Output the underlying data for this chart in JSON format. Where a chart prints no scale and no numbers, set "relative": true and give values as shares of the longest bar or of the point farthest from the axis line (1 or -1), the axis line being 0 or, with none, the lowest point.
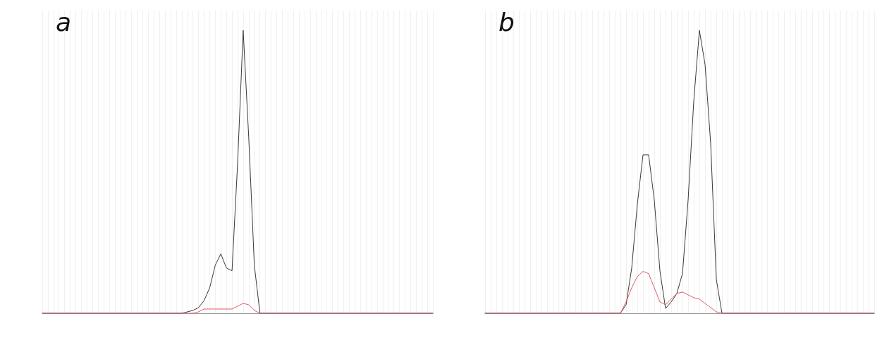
{
  "chart_data": [
    {
      "type": "line",
      "title": "a",
      "relative": true,
      "grid": "x",
      "line_style": "solid",
      "categories": [
        null,
        null,
        null,
        null,
        null,
        null,
        null,
        null,
        null,
        null,
        null,
        null,
        null,
        null,
        null,
        null,
        null,
        null,
        null,
        null,
        null,
        null,
        null,
        null,
        null,
        null,
        null,
        null,
        null,
        null,
        null,
        null,
        null,
        null,
        null,
        null,
        null,
        null,
        null,
        null,
        null,
        null,
        null,
        null,
        null,
        null,
        null,
        null,
        null,
        null,
        null,
        null,
        null,
        null,
        null,
        null,
        null,
        null,
        null,
        null,
        null,
        null,
        null,
        null,
        null,
        null,
        null,
        null,
        null,
        null,
        null
      ],
      "series": [
        {
          "color": "#3a3a3a",
          "values": [
            0,
            0,
            0,
            0,
            0,
            0,
            0,
            0,
            0,
            0,
            0,
            0,
            0,
            0,
            0,
            0,
            0,
            0,
            0,
            0,
            0,
            0,
            0,
            0,
            0,
            0,
            0.005,
            0.01,
            0.02,
            0.045,
            0.09,
            0.17,
            0.21,
            0.16,
            0.15,
            0.53,
            1,
            0.62,
            0.17,
            0,
            0,
            0,
            0,
            0,
            0,
            0,
            0,
            0,
            0,
            0,
            0,
            0,
            0,
            0,
            0,
            0,
            0,
            0,
            0,
            0,
            0,
            0,
            0,
            0,
            0,
            0,
            0,
            0,
            0,
            0,
            0
          ]
        },
        {
          "color": "#e05a6a",
          "values": [
            0,
            0,
            0,
            0,
            0,
            0,
            0,
            0,
            0,
            0,
            0,
            0,
            0,
            0,
            0,
            0,
            0,
            0,
            0,
            0,
            0,
            0,
            0,
            0,
            0,
            0,
            0,
            0,
            0.005,
            0.015,
            0.015,
            0.015,
            0.015,
            0.015,
            0.015,
            0.025,
            0.035,
            0.03,
            0.01,
            0,
            0,
            0,
            0,
            0,
            0,
            0,
            0,
            0,
            0,
            0,
            0,
            0,
            0,
            0,
            0,
            0,
            0,
            0,
            0,
            0,
            0,
            0,
            0,
            0,
            0,
            0,
            0,
            0,
            0,
            0,
            0
          ]
        }
      ]
    },
    {
      "type": "line",
      "title": "b",
      "relative": true,
      "grid": "x",
      "line_style": "solid",
      "categories": [
        null,
        null,
        null,
        null,
        null,
        null,
        null,
        null,
        null,
        null,
        null,
        null,
        null,
        null,
        null,
        null,
        null,
        null,
        null,
        null,
        null,
        null,
        null,
        null,
        null,
        null,
        null,
        null,
        null,
        null,
        null,
        null,
        null,
        null,
        null,
        null,
        null,
        null,
        null,
        null,
        null,
        null,
        null,
        null,
        null,
        null,
        null,
        null,
        null,
        null,
        null,
        null,
        null,
        null,
        null,
        null,
        null,
        null,
        null,
        null,
        null,
        null,
        null,
        null,
        null,
        null,
        null,
        null,
        null,
        null
      ],
      "series": [
        {
          "color": "#3a3a3a",
          "values": [
            0,
            0,
            0,
            0,
            0,
            0,
            0,
            0,
            0,
            0,
            0,
            0,
            0,
            0,
            0,
            0,
            0,
            0,
            0,
            0,
            0,
            0,
            0,
            0,
            0,
            0.03,
            0.16,
            0.386,
            0.56,
            0.56,
            0.4,
            0.15,
            0.017,
            0.04,
            0.07,
            0.14,
            0.4,
            0.75,
            1,
            0.88,
            0.6,
            0.12,
            0,
            0,
            0,
            0,
            0,
            0,
            0,
            0,
            0,
            0,
            0,
            0,
            0,
            0,
            0,
            0,
            0,
            0,
            0,
            0,
            0,
            0,
            0,
            0,
            0,
            0,
            0,
            0
          ]
        },
        {
          "color": "#e05a6a",
          "values": [
            0,
            0,
            0,
            0,
            0,
            0,
            0,
            0,
            0,
            0,
            0,
            0,
            0,
            0,
            0,
            0,
            0,
            0,
            0,
            0,
            0,
            0,
            0,
            0,
            0,
            0.04,
            0.09,
            0.13,
            0.148,
            0.14,
            0.09,
            0.04,
            0.03,
            0.05,
            0.07,
            0.075,
            0.065,
            0.055,
            0.05,
            0.035,
            0.02,
            0.005,
            0,
            0,
            0,
            0,
            0,
            0,
            0,
            0,
            0,
            0,
            0,
            0,
            0,
            0,
            0,
            0,
            0,
            0,
            0,
            0,
            0,
            0,
            0,
            0,
            0,
            0,
            0,
            0
          ]
        }
      ]
    }
  ]
}
